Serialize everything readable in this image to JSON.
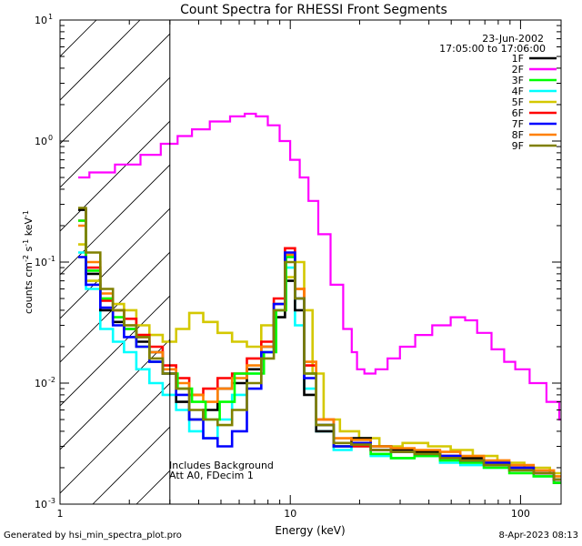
{
  "footer": {
    "left": "Generated by hsi_min_spectra_plot.pro",
    "right": "8-Apr-2023 08:13"
  },
  "chart_data": {
    "type": "line",
    "title": "Count Spectra for RHESSI Front Segments",
    "xlabel": "Energy (keV)",
    "ylabel": "counts cm-2 s-1 keV-1",
    "xscale": "log",
    "yscale": "log",
    "xlim": [
      1,
      150
    ],
    "ylim": [
      0.001,
      10
    ],
    "x_tick_labels": [
      "1",
      "10",
      "100"
    ],
    "y_tick_labels": [
      "10^-3",
      "10^-2",
      "10^-1",
      "10^0",
      "10^1"
    ],
    "date": "23-Jun-2002",
    "time_range": "17:05:00 to 17:06:00",
    "annotation_lines": [
      "Includes Background",
      "Att A0, FDecim 1"
    ],
    "hatched_region_xmax": 3,
    "series": [
      {
        "name": "1F",
        "color": "#000000",
        "points": [
          [
            1.2,
            0.27
          ],
          [
            1.4,
            0.08
          ],
          [
            1.6,
            0.04
          ],
          [
            1.8,
            0.032
          ],
          [
            2.0,
            0.028
          ],
          [
            2.3,
            0.022
          ],
          [
            2.6,
            0.018
          ],
          [
            3.0,
            0.012
          ],
          [
            3.4,
            0.007
          ],
          [
            3.9,
            0.005
          ],
          [
            4.5,
            0.006
          ],
          [
            5.2,
            0.009
          ],
          [
            6.0,
            0.01
          ],
          [
            7.0,
            0.013
          ],
          [
            8.0,
            0.02
          ],
          [
            9.0,
            0.035
          ],
          [
            10.0,
            0.07
          ],
          [
            11.0,
            0.04
          ],
          [
            12.0,
            0.008
          ],
          [
            14.0,
            0.004
          ],
          [
            17.0,
            0.003
          ],
          [
            20.0,
            0.0035
          ],
          [
            25.0,
            0.003
          ],
          [
            30.0,
            0.0028
          ],
          [
            40.0,
            0.0027
          ],
          [
            50.0,
            0.0025
          ],
          [
            60.0,
            0.0024
          ],
          [
            80.0,
            0.0022
          ],
          [
            100.0,
            0.002
          ],
          [
            130.0,
            0.0018
          ],
          [
            150.0,
            0.0015
          ]
        ]
      },
      {
        "name": "2F",
        "color": "#ff00ff",
        "points": [
          [
            1.2,
            0.5
          ],
          [
            1.5,
            0.55
          ],
          [
            2.0,
            0.64
          ],
          [
            2.5,
            0.77
          ],
          [
            3.0,
            0.95
          ],
          [
            3.5,
            1.1
          ],
          [
            4.0,
            1.25
          ],
          [
            5.0,
            1.45
          ],
          [
            6.0,
            1.6
          ],
          [
            6.7,
            1.68
          ],
          [
            7.5,
            1.6
          ],
          [
            8.5,
            1.35
          ],
          [
            9.5,
            1.0
          ],
          [
            10.5,
            0.7
          ],
          [
            11.5,
            0.5
          ],
          [
            12.5,
            0.32
          ],
          [
            14.0,
            0.17
          ],
          [
            16.0,
            0.065
          ],
          [
            18.0,
            0.028
          ],
          [
            19.0,
            0.018
          ],
          [
            20.0,
            0.013
          ],
          [
            22.0,
            0.012
          ],
          [
            25.0,
            0.013
          ],
          [
            28.0,
            0.016
          ],
          [
            32.0,
            0.02
          ],
          [
            38.0,
            0.025
          ],
          [
            45.0,
            0.03
          ],
          [
            55.0,
            0.035
          ],
          [
            60.0,
            0.033
          ],
          [
            70.0,
            0.026
          ],
          [
            80.0,
            0.019
          ],
          [
            90.0,
            0.015
          ],
          [
            100.0,
            0.013
          ],
          [
            120.0,
            0.01
          ],
          [
            140.0,
            0.007
          ],
          [
            155.0,
            0.005
          ]
        ]
      },
      {
        "name": "3F",
        "color": "#00ff00",
        "points": [
          [
            1.2,
            0.22
          ],
          [
            1.4,
            0.085
          ],
          [
            1.6,
            0.05
          ],
          [
            1.8,
            0.035
          ],
          [
            2.0,
            0.028
          ],
          [
            2.3,
            0.02
          ],
          [
            2.6,
            0.015
          ],
          [
            3.0,
            0.012
          ],
          [
            3.5,
            0.009
          ],
          [
            4.0,
            0.007
          ],
          [
            4.6,
            0.005
          ],
          [
            5.3,
            0.007
          ],
          [
            6.2,
            0.012
          ],
          [
            7.2,
            0.012
          ],
          [
            8.2,
            0.018
          ],
          [
            9.2,
            0.04
          ],
          [
            10.0,
            0.11
          ],
          [
            11.0,
            0.05
          ],
          [
            12.0,
            0.012
          ],
          [
            14.0,
            0.0045
          ],
          [
            17.0,
            0.003
          ],
          [
            20.0,
            0.0032
          ],
          [
            25.0,
            0.0026
          ],
          [
            30.0,
            0.0024
          ],
          [
            40.0,
            0.0025
          ],
          [
            50.0,
            0.0023
          ],
          [
            60.0,
            0.0022
          ],
          [
            80.0,
            0.002
          ],
          [
            100.0,
            0.0018
          ],
          [
            130.0,
            0.0017
          ],
          [
            150.0,
            0.0015
          ]
        ]
      },
      {
        "name": "4F",
        "color": "#00ffff",
        "points": [
          [
            1.2,
            0.12
          ],
          [
            1.4,
            0.06
          ],
          [
            1.6,
            0.028
          ],
          [
            1.8,
            0.022
          ],
          [
            2.0,
            0.018
          ],
          [
            2.3,
            0.013
          ],
          [
            2.6,
            0.01
          ],
          [
            3.0,
            0.008
          ],
          [
            3.4,
            0.006
          ],
          [
            3.9,
            0.004
          ],
          [
            4.5,
            0.0035
          ],
          [
            5.2,
            0.005
          ],
          [
            6.0,
            0.008
          ],
          [
            7.0,
            0.012
          ],
          [
            8.0,
            0.018
          ],
          [
            9.0,
            0.04
          ],
          [
            10.0,
            0.09
          ],
          [
            11.0,
            0.03
          ],
          [
            12.0,
            0.009
          ],
          [
            14.0,
            0.004
          ],
          [
            17.0,
            0.0028
          ],
          [
            20.0,
            0.003
          ],
          [
            25.0,
            0.0025
          ],
          [
            30.0,
            0.0024
          ],
          [
            40.0,
            0.0025
          ],
          [
            50.0,
            0.0022
          ],
          [
            60.0,
            0.0021
          ],
          [
            80.0,
            0.002
          ],
          [
            100.0,
            0.0019
          ],
          [
            130.0,
            0.0017
          ],
          [
            150.0,
            0.0016
          ]
        ]
      },
      {
        "name": "5F",
        "color": "#d4c800",
        "points": [
          [
            1.2,
            0.14
          ],
          [
            1.4,
            0.07
          ],
          [
            1.6,
            0.05
          ],
          [
            1.8,
            0.045
          ],
          [
            2.0,
            0.04
          ],
          [
            2.3,
            0.03
          ],
          [
            2.6,
            0.025
          ],
          [
            3.0,
            0.022
          ],
          [
            3.4,
            0.028
          ],
          [
            3.9,
            0.038
          ],
          [
            4.5,
            0.032
          ],
          [
            5.2,
            0.026
          ],
          [
            6.0,
            0.022
          ],
          [
            7.0,
            0.02
          ],
          [
            8.0,
            0.03
          ],
          [
            9.0,
            0.045
          ],
          [
            10.0,
            0.075
          ],
          [
            11.0,
            0.1
          ],
          [
            12.0,
            0.04
          ],
          [
            13.0,
            0.012
          ],
          [
            15.0,
            0.005
          ],
          [
            18.0,
            0.004
          ],
          [
            22.0,
            0.0035
          ],
          [
            27.0,
            0.003
          ],
          [
            35.0,
            0.0032
          ],
          [
            45.0,
            0.003
          ],
          [
            55.0,
            0.0028
          ],
          [
            70.0,
            0.0025
          ],
          [
            90.0,
            0.0022
          ],
          [
            120.0,
            0.002
          ],
          [
            150.0,
            0.0018
          ]
        ]
      },
      {
        "name": "6F",
        "color": "#ff0000",
        "points": [
          [
            1.2,
            0.22
          ],
          [
            1.4,
            0.09
          ],
          [
            1.6,
            0.048
          ],
          [
            1.8,
            0.04
          ],
          [
            2.0,
            0.034
          ],
          [
            2.3,
            0.025
          ],
          [
            2.6,
            0.02
          ],
          [
            3.0,
            0.014
          ],
          [
            3.4,
            0.011
          ],
          [
            3.9,
            0.008
          ],
          [
            4.5,
            0.009
          ],
          [
            5.2,
            0.011
          ],
          [
            6.0,
            0.012
          ],
          [
            7.0,
            0.016
          ],
          [
            8.0,
            0.022
          ],
          [
            9.0,
            0.05
          ],
          [
            10.0,
            0.13
          ],
          [
            11.0,
            0.06
          ],
          [
            12.0,
            0.014
          ],
          [
            14.0,
            0.005
          ],
          [
            17.0,
            0.003
          ],
          [
            20.0,
            0.003
          ],
          [
            25.0,
            0.0028
          ],
          [
            30.0,
            0.0027
          ],
          [
            40.0,
            0.0026
          ],
          [
            50.0,
            0.0025
          ],
          [
            60.0,
            0.0023
          ],
          [
            80.0,
            0.0021
          ],
          [
            100.0,
            0.002
          ],
          [
            130.0,
            0.0018
          ],
          [
            150.0,
            0.0016
          ]
        ]
      },
      {
        "name": "7F",
        "color": "#0000ff",
        "points": [
          [
            1.2,
            0.11
          ],
          [
            1.4,
            0.065
          ],
          [
            1.6,
            0.042
          ],
          [
            1.8,
            0.03
          ],
          [
            2.0,
            0.024
          ],
          [
            2.3,
            0.02
          ],
          [
            2.6,
            0.015
          ],
          [
            3.0,
            0.012
          ],
          [
            3.4,
            0.008
          ],
          [
            3.9,
            0.005
          ],
          [
            4.5,
            0.0035
          ],
          [
            5.2,
            0.003
          ],
          [
            6.0,
            0.004
          ],
          [
            7.0,
            0.009
          ],
          [
            8.0,
            0.018
          ],
          [
            9.0,
            0.045
          ],
          [
            10.0,
            0.12
          ],
          [
            11.0,
            0.05
          ],
          [
            12.0,
            0.011
          ],
          [
            14.0,
            0.0045
          ],
          [
            17.0,
            0.003
          ],
          [
            20.0,
            0.0032
          ],
          [
            25.0,
            0.0028
          ],
          [
            30.0,
            0.0027
          ],
          [
            40.0,
            0.0026
          ],
          [
            50.0,
            0.0025
          ],
          [
            60.0,
            0.0023
          ],
          [
            80.0,
            0.0022
          ],
          [
            100.0,
            0.002
          ],
          [
            130.0,
            0.0018
          ],
          [
            150.0,
            0.0016
          ]
        ]
      },
      {
        "name": "8F",
        "color": "#ff8000",
        "points": [
          [
            1.2,
            0.2
          ],
          [
            1.4,
            0.1
          ],
          [
            1.6,
            0.055
          ],
          [
            1.8,
            0.04
          ],
          [
            2.0,
            0.03
          ],
          [
            2.3,
            0.024
          ],
          [
            2.6,
            0.018
          ],
          [
            3.0,
            0.013
          ],
          [
            3.4,
            0.01
          ],
          [
            3.9,
            0.008
          ],
          [
            4.5,
            0.007
          ],
          [
            5.2,
            0.009
          ],
          [
            6.0,
            0.011
          ],
          [
            7.0,
            0.014
          ],
          [
            8.0,
            0.02
          ],
          [
            9.0,
            0.045
          ],
          [
            10.0,
            0.115
          ],
          [
            11.0,
            0.06
          ],
          [
            12.0,
            0.015
          ],
          [
            14.0,
            0.005
          ],
          [
            17.0,
            0.0035
          ],
          [
            20.0,
            0.0034
          ],
          [
            25.0,
            0.003
          ],
          [
            30.0,
            0.0029
          ],
          [
            40.0,
            0.0028
          ],
          [
            50.0,
            0.0027
          ],
          [
            60.0,
            0.0025
          ],
          [
            80.0,
            0.0023
          ],
          [
            100.0,
            0.0021
          ],
          [
            130.0,
            0.0019
          ],
          [
            150.0,
            0.0017
          ]
        ]
      },
      {
        "name": "9F",
        "color": "#808000",
        "points": [
          [
            1.2,
            0.28
          ],
          [
            1.4,
            0.12
          ],
          [
            1.6,
            0.06
          ],
          [
            1.8,
            0.04
          ],
          [
            2.0,
            0.03
          ],
          [
            2.3,
            0.024
          ],
          [
            2.6,
            0.016
          ],
          [
            3.0,
            0.012
          ],
          [
            3.4,
            0.009
          ],
          [
            3.9,
            0.006
          ],
          [
            4.5,
            0.005
          ],
          [
            5.2,
            0.0045
          ],
          [
            6.0,
            0.006
          ],
          [
            7.0,
            0.01
          ],
          [
            8.0,
            0.016
          ],
          [
            9.0,
            0.04
          ],
          [
            10.0,
            0.1
          ],
          [
            11.0,
            0.05
          ],
          [
            12.0,
            0.012
          ],
          [
            14.0,
            0.0045
          ],
          [
            17.0,
            0.0032
          ],
          [
            20.0,
            0.0031
          ],
          [
            25.0,
            0.0028
          ],
          [
            30.0,
            0.0027
          ],
          [
            40.0,
            0.0026
          ],
          [
            50.0,
            0.0024
          ],
          [
            60.0,
            0.0023
          ],
          [
            80.0,
            0.0021
          ],
          [
            100.0,
            0.0019
          ],
          [
            130.0,
            0.0018
          ],
          [
            150.0,
            0.0016
          ]
        ]
      }
    ]
  }
}
